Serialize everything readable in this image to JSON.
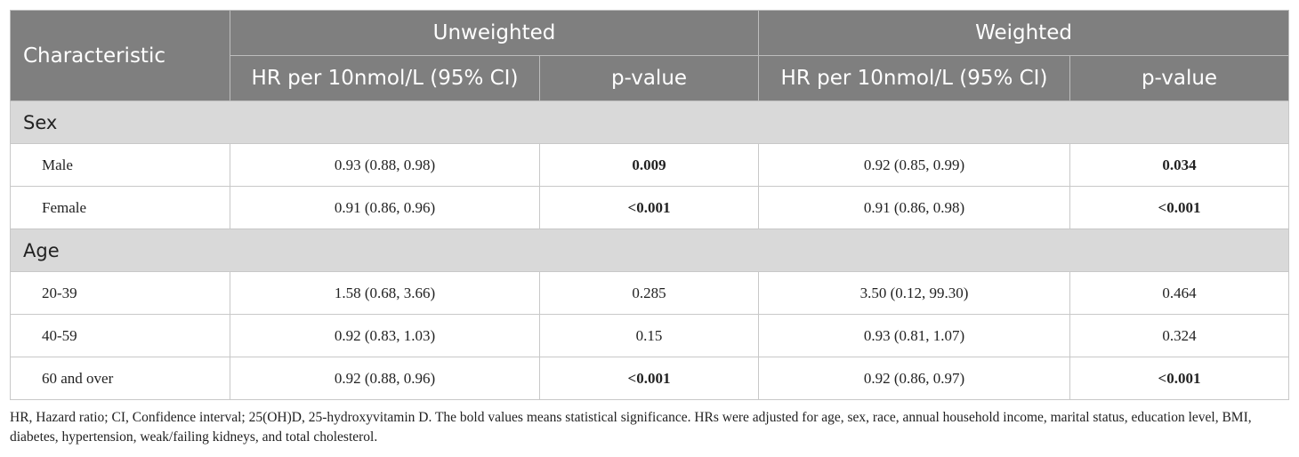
{
  "header": {
    "characteristic": "Characteristic",
    "unweighted": "Unweighted",
    "weighted": "Weighted",
    "hr_label": "HR per 10nmol/L (95% CI)",
    "p_label": "p-value"
  },
  "groups": [
    {
      "name": "Sex",
      "rows": [
        {
          "label": "Male",
          "u_hr": "0.93 (0.88, 0.98)",
          "u_p": "0.009",
          "u_p_bold": true,
          "w_hr": "0.92 (0.85, 0.99)",
          "w_p": "0.034",
          "w_p_bold": true
        },
        {
          "label": "Female",
          "u_hr": "0.91 (0.86, 0.96)",
          "u_p": "<0.001",
          "u_p_bold": true,
          "w_hr": "0.91 (0.86, 0.98)",
          "w_p": "<0.001",
          "w_p_bold": true
        }
      ]
    },
    {
      "name": "Age",
      "rows": [
        {
          "label": "20-39",
          "u_hr": "1.58 (0.68, 3.66)",
          "u_p": "0.285",
          "u_p_bold": false,
          "w_hr": "3.50 (0.12, 99.30)",
          "w_p": "0.464",
          "w_p_bold": false
        },
        {
          "label": "40-59",
          "u_hr": "0.92 (0.83, 1.03)",
          "u_p": "0.15",
          "u_p_bold": false,
          "w_hr": "0.93 (0.81, 1.07)",
          "w_p": "0.324",
          "w_p_bold": false
        },
        {
          "label": "60 and over",
          "u_hr": "0.92 (0.88, 0.96)",
          "u_p": "<0.001",
          "u_p_bold": true,
          "w_hr": "0.92 (0.86, 0.97)",
          "w_p": "<0.001",
          "w_p_bold": true
        }
      ]
    }
  ],
  "footnote": "HR, Hazard ratio; CI, Confidence interval; 25(OH)D, 25-hydroxyvitamin D. The bold values means statistical significance. HRs were adjusted for age, sex, race, annual household income, marital status, education level, BMI, diabetes, hypertension, weak/failing kidneys, and total cholesterol.",
  "colors": {
    "header_bg": "#7f7f7f",
    "group_bg": "#d9d9d9"
  }
}
